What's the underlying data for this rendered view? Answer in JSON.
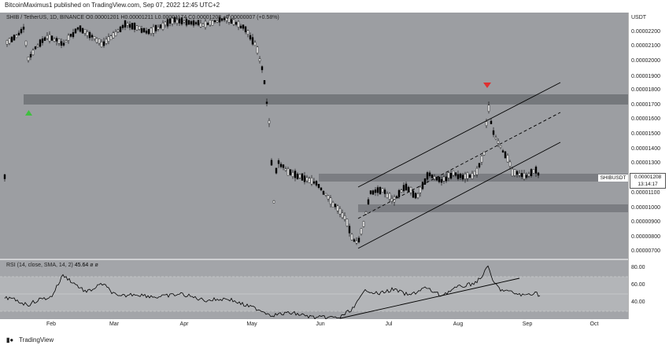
{
  "header": {
    "published_text": "BitcoinMaximus1 published on TradingView.com, Sep 07, 2022 12:45 UTC+2"
  },
  "legend": {
    "symbol": "SHIB / TetherUS, 1D, BINANCE",
    "ohlc": "O0.00001201 H0.00001211 L0.00001174 C0.00001208 +0.00000007 (+0.58%)"
  },
  "rsi_legend": {
    "text": "RSI (14, close, SMA, 14, 2)",
    "value": "45.64",
    "extra": "ø ø"
  },
  "price_axis": {
    "unit": "USDT",
    "labels": [
      "0.00002200",
      "0.00002100",
      "0.00002000",
      "0.00001900",
      "0.00001800",
      "0.00001700",
      "0.00001600",
      "0.00001500",
      "0.00001400",
      "0.00001300",
      "0.00001100",
      "0.00001000",
      "0.00000900",
      "0.00000800",
      "0.00000700"
    ]
  },
  "rsi_axis": {
    "labels": [
      "80.00",
      "60.00",
      "40.00"
    ]
  },
  "time_axis": {
    "labels": [
      "Feb",
      "Mar",
      "Apr",
      "May",
      "Jun",
      "Jul",
      "Aug",
      "Sep",
      "Oct"
    ]
  },
  "current_price": {
    "symbol": "SHIBUSDT",
    "price": "0.00001208",
    "countdown": "13:14:17"
  },
  "footer": {
    "brand": "TradingView"
  },
  "colors": {
    "background": "#9c9ea2",
    "zone": "#6f7176",
    "up_marker": "#3fbf3f",
    "down_marker": "#e03030",
    "line": "#000000"
  }
}
